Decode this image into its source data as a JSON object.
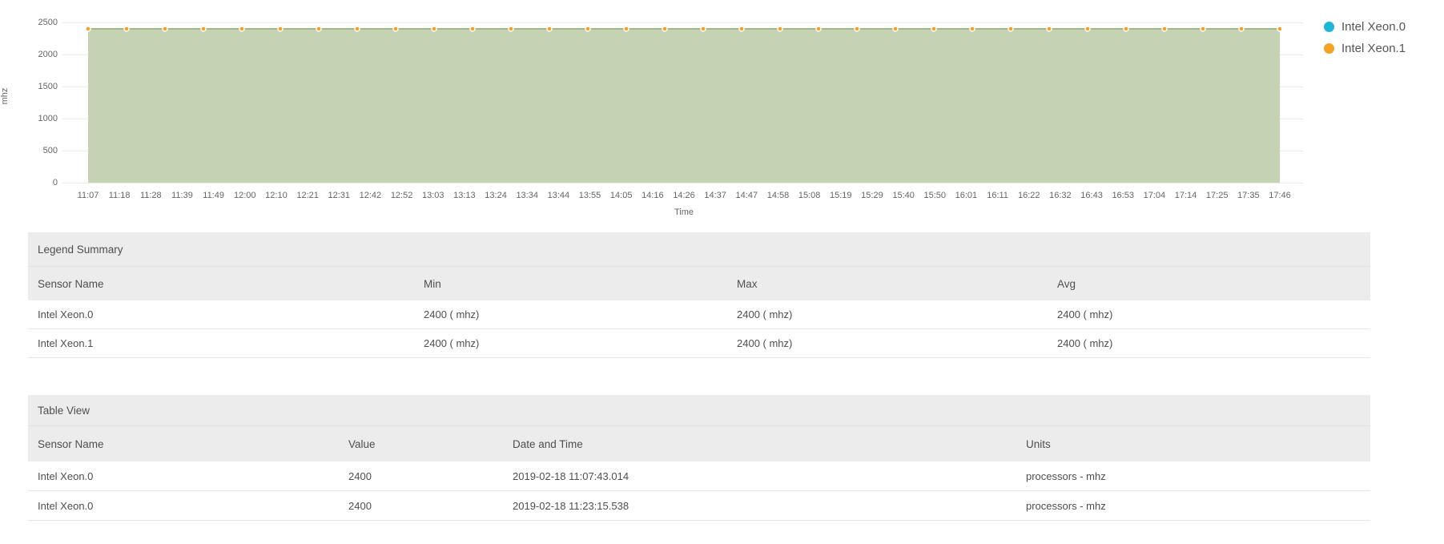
{
  "chart": {
    "ylabel": "mhz",
    "xlabel": "Time",
    "colors": {
      "area_fill": "#c6d2b4",
      "area_line": "#a3b981",
      "marker": "#f0a136",
      "marker_ring": "#ffffff",
      "grid": "#ebebeb",
      "series0": "#1fb6d6",
      "series1": "#f5a227"
    }
  },
  "chart_data": {
    "type": "area",
    "title": "",
    "xlabel": "Time",
    "ylabel": "mhz",
    "ylim": [
      0,
      2500
    ],
    "yticks": [
      2500,
      2000,
      1500,
      1000,
      500,
      0
    ],
    "xticklabels": [
      "11:07",
      "11:18",
      "11:28",
      "11:39",
      "11:49",
      "12:00",
      "12:10",
      "12:21",
      "12:31",
      "12:42",
      "12:52",
      "13:03",
      "13:13",
      "13:24",
      "13:34",
      "13:44",
      "13:55",
      "14:05",
      "14:16",
      "14:26",
      "14:37",
      "14:47",
      "14:58",
      "15:08",
      "15:19",
      "15:29",
      "15:40",
      "15:50",
      "16:01",
      "16:11",
      "16:22",
      "16:32",
      "16:43",
      "16:53",
      "17:04",
      "17:14",
      "17:25",
      "17:35",
      "17:46"
    ],
    "grid": true,
    "legend_position": "top-right",
    "series": [
      {
        "name": "Intel Xeon.0",
        "color": "#1fb6d6",
        "values": [
          2400,
          2400,
          2400,
          2400,
          2400,
          2400,
          2400,
          2400,
          2400,
          2400,
          2400,
          2400,
          2400,
          2400,
          2400,
          2400,
          2400,
          2400,
          2400,
          2400,
          2400,
          2400,
          2400,
          2400,
          2400,
          2400,
          2400,
          2400,
          2400,
          2400,
          2400,
          2400
        ]
      },
      {
        "name": "Intel Xeon.1",
        "color": "#f5a227",
        "values": [
          2400,
          2400,
          2400,
          2400,
          2400,
          2400,
          2400,
          2400,
          2400,
          2400,
          2400,
          2400,
          2400,
          2400,
          2400,
          2400,
          2400,
          2400,
          2400,
          2400,
          2400,
          2400,
          2400,
          2400,
          2400,
          2400,
          2400,
          2400,
          2400,
          2400,
          2400,
          2400
        ]
      }
    ]
  },
  "legend_summary": {
    "title": "Legend Summary",
    "headers": [
      "Sensor Name",
      "Min",
      "Max",
      "Avg"
    ],
    "rows": [
      [
        "Intel Xeon.0",
        "2400 ( mhz)",
        "2400 ( mhz)",
        "2400 ( mhz)"
      ],
      [
        "Intel Xeon.1",
        "2400 ( mhz)",
        "2400 ( mhz)",
        "2400 ( mhz)"
      ]
    ]
  },
  "table_view": {
    "title": "Table View",
    "headers": [
      "Sensor Name",
      "Value",
      "Date and Time",
      "Units"
    ],
    "rows": [
      [
        "Intel Xeon.0",
        "2400",
        "2019-02-18 11:07:43.014",
        "processors - mhz"
      ],
      [
        "Intel Xeon.0",
        "2400",
        "2019-02-18 11:23:15.538",
        "processors - mhz"
      ]
    ]
  }
}
